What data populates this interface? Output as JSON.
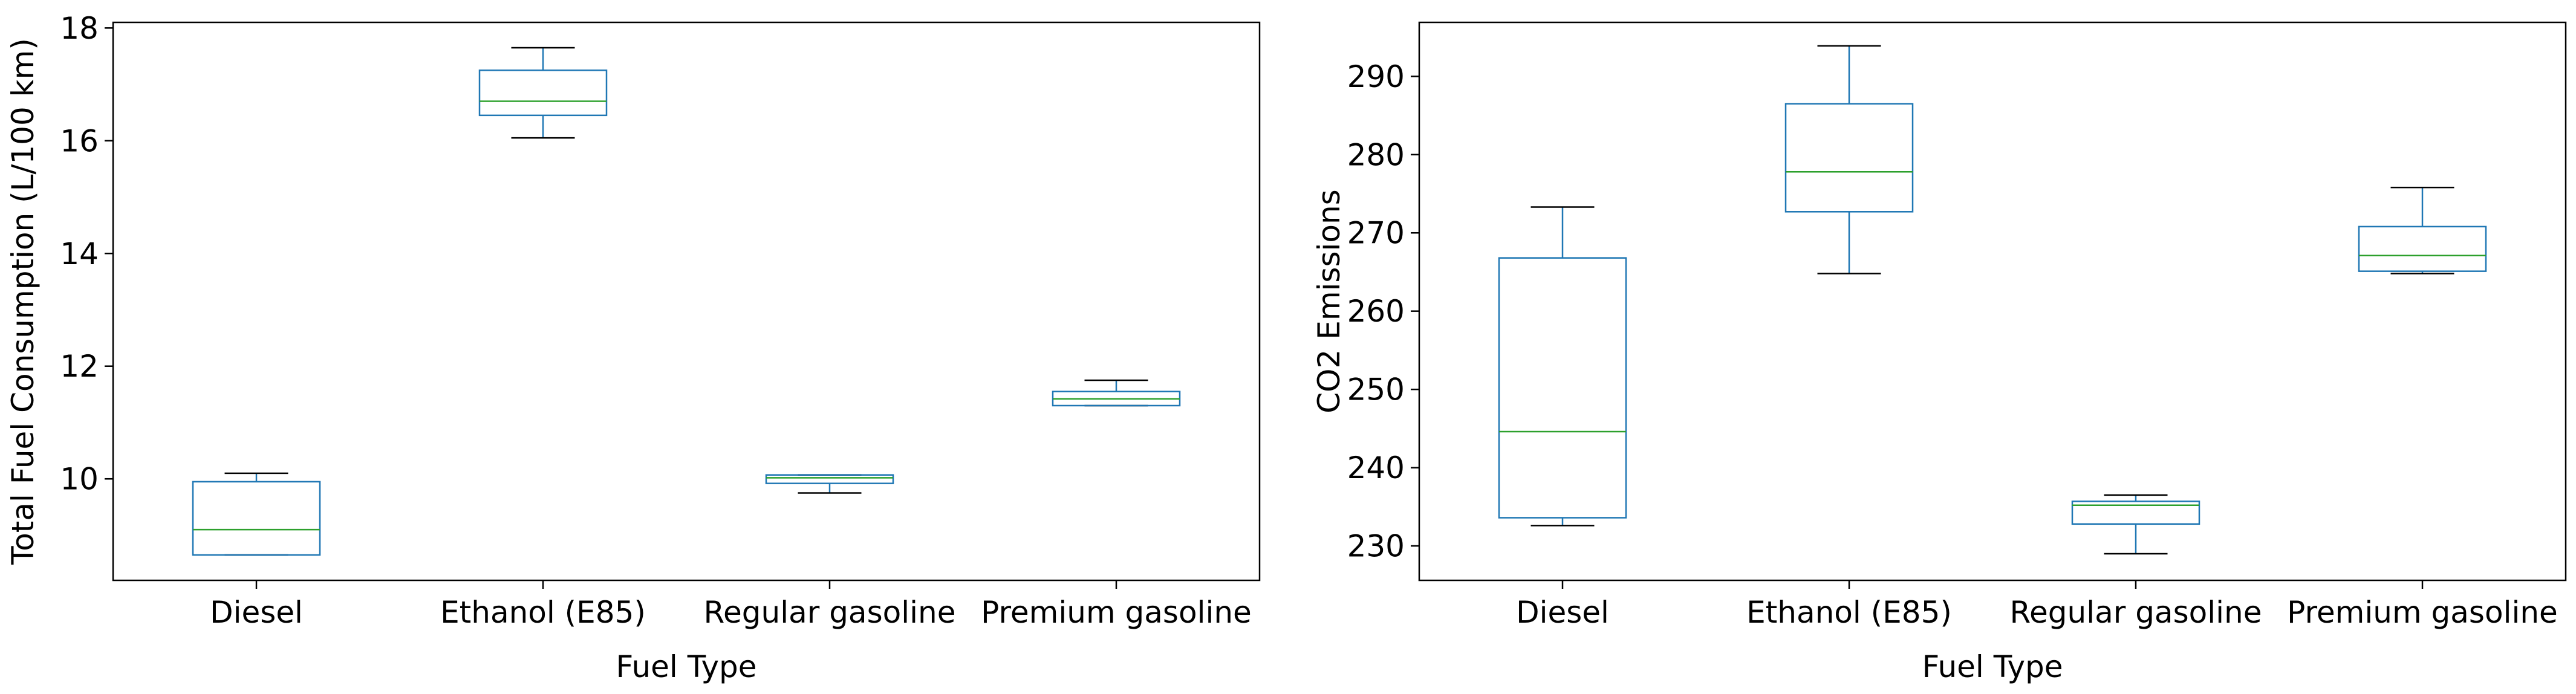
{
  "chart_data": [
    {
      "type": "box",
      "title": "",
      "xlabel": "Fuel Type",
      "ylabel": "Total Fuel Consumption (L/100 km)",
      "categories": [
        "Diesel",
        "Ethanol (E85)",
        "Regular gasoline",
        "Premium gasoline"
      ],
      "yticks": [
        10,
        12,
        14,
        16,
        18
      ],
      "ylim": [
        8.2,
        18.1
      ],
      "grid": false,
      "boxes": [
        {
          "category": "Diesel",
          "whisker_low": 8.65,
          "q1": 8.65,
          "median": 9.1,
          "q3": 9.95,
          "whisker_high": 10.1
        },
        {
          "category": "Ethanol (E85)",
          "whisker_low": 16.05,
          "q1": 16.45,
          "median": 16.7,
          "q3": 17.25,
          "whisker_high": 17.65
        },
        {
          "category": "Regular gasoline",
          "whisker_low": 9.75,
          "q1": 9.92,
          "median": 10.02,
          "q3": 10.07,
          "whisker_high": 10.07
        },
        {
          "category": "Premium gasoline",
          "whisker_low": 11.3,
          "q1": 11.3,
          "median": 11.42,
          "q3": 11.55,
          "whisker_high": 11.75
        }
      ]
    },
    {
      "type": "box",
      "title": "",
      "xlabel": "Fuel Type",
      "ylabel": "CO2 Emissions",
      "categories": [
        "Diesel",
        "Ethanol (E85)",
        "Regular gasoline",
        "Premium gasoline"
      ],
      "yticks": [
        230,
        240,
        250,
        260,
        270,
        280,
        290
      ],
      "ylim": [
        225.6,
        296.9
      ],
      "grid": false,
      "boxes": [
        {
          "category": "Diesel",
          "whisker_low": 232.6,
          "q1": 233.6,
          "median": 244.6,
          "q3": 266.8,
          "whisker_high": 273.3
        },
        {
          "category": "Ethanol (E85)",
          "whisker_low": 264.8,
          "q1": 272.7,
          "median": 277.8,
          "q3": 286.5,
          "whisker_high": 293.9
        },
        {
          "category": "Regular gasoline",
          "whisker_low": 229.0,
          "q1": 232.8,
          "median": 235.2,
          "q3": 235.7,
          "whisker_high": 236.5
        },
        {
          "category": "Premium gasoline",
          "whisker_low": 264.8,
          "q1": 265.1,
          "median": 267.1,
          "q3": 270.8,
          "whisker_high": 275.8
        }
      ]
    }
  ],
  "colors": {
    "box": "#1f77b4",
    "median": "#2ca02c",
    "cap": "#000000",
    "axes": "#000000"
  }
}
